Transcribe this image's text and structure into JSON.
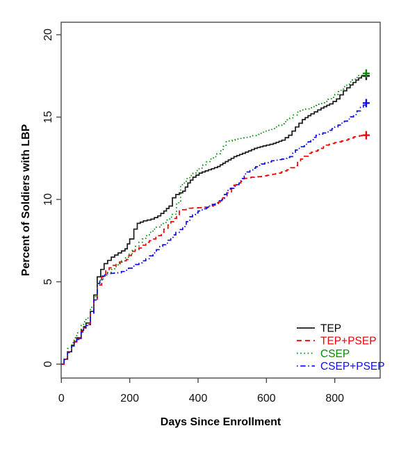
{
  "figure": {
    "xlabel": "Days Since Enrollment",
    "ylabel": "Percent of Soldiers with LBP"
  },
  "chart_data": {
    "type": "line",
    "line_style": "step-after",
    "title": "",
    "xlabel": "Days Since Enrollment",
    "ylabel": "Percent of Soldiers with LBP",
    "xlim": [
      0,
      933
    ],
    "ylim": [
      0,
      20.9
    ],
    "x_ticks": [
      "0",
      "200",
      "400",
      "600",
      "800"
    ],
    "x_tick_values": [
      0,
      200,
      400,
      600,
      800
    ],
    "y_ticks": [
      "0",
      "5",
      "10",
      "15",
      "20"
    ],
    "y_tick_values": [
      0,
      5,
      10,
      15,
      20
    ],
    "grid": false,
    "legend_position": "bottom-right",
    "box_color": "#4a4a4a",
    "tick_label_color": "#111111",
    "series": [
      {
        "name": "TEP",
        "color": "#1a1a1a",
        "dash": "solid",
        "censor_at_end": true,
        "points": [
          [
            0,
            0
          ],
          [
            8,
            0.3
          ],
          [
            18,
            0.75
          ],
          [
            30,
            1.15
          ],
          [
            45,
            1.6
          ],
          [
            58,
            2.05
          ],
          [
            72,
            2.5
          ],
          [
            85,
            3.2
          ],
          [
            95,
            4.2
          ],
          [
            105,
            5.3
          ],
          [
            115,
            5.75
          ],
          [
            125,
            6.1
          ],
          [
            146,
            6.5
          ],
          [
            166,
            6.75
          ],
          [
            186,
            7
          ],
          [
            200,
            7.6
          ],
          [
            212,
            8.2
          ],
          [
            222,
            8.55
          ],
          [
            240,
            8.7
          ],
          [
            262,
            8.8
          ],
          [
            282,
            9
          ],
          [
            300,
            9.3
          ],
          [
            315,
            9.6
          ],
          [
            325,
            10.1
          ],
          [
            335,
            10.3
          ],
          [
            355,
            10.5
          ],
          [
            370,
            11
          ],
          [
            385,
            11.35
          ],
          [
            403,
            11.6
          ],
          [
            430,
            11.8
          ],
          [
            457,
            12
          ],
          [
            480,
            12.3
          ],
          [
            505,
            12.6
          ],
          [
            530,
            12.8
          ],
          [
            565,
            13.1
          ],
          [
            590,
            13.25
          ],
          [
            620,
            13.4
          ],
          [
            645,
            13.6
          ],
          [
            665,
            13.9
          ],
          [
            685,
            14.4
          ],
          [
            705,
            14.85
          ],
          [
            730,
            15.2
          ],
          [
            760,
            15.55
          ],
          [
            785,
            15.8
          ],
          [
            805,
            16.1
          ],
          [
            825,
            16.6
          ],
          [
            845,
            16.95
          ],
          [
            862,
            17.25
          ],
          [
            878,
            17.5
          ],
          [
            892,
            17.5
          ]
        ]
      },
      {
        "name": "TEP+PSEP",
        "color": "#f00000",
        "dash": "dashed",
        "censor_at_end": true,
        "points": [
          [
            0,
            0
          ],
          [
            8,
            0.3
          ],
          [
            18,
            0.75
          ],
          [
            30,
            1.15
          ],
          [
            45,
            1.55
          ],
          [
            58,
            2
          ],
          [
            72,
            2.4
          ],
          [
            85,
            3.1
          ],
          [
            95,
            3.9
          ],
          [
            105,
            4.8
          ],
          [
            118,
            5.3
          ],
          [
            130,
            5.7
          ],
          [
            150,
            6
          ],
          [
            170,
            6.2
          ],
          [
            190,
            6.35
          ],
          [
            205,
            6.85
          ],
          [
            227,
            7.05
          ],
          [
            247,
            7.4
          ],
          [
            268,
            7.6
          ],
          [
            285,
            7.8
          ],
          [
            300,
            8.2
          ],
          [
            312,
            8.45
          ],
          [
            329,
            8.85
          ],
          [
            345,
            9.3
          ],
          [
            365,
            9.45
          ],
          [
            400,
            9.5
          ],
          [
            430,
            9.55
          ],
          [
            445,
            9.65
          ],
          [
            460,
            9.85
          ],
          [
            472,
            10.1
          ],
          [
            485,
            10.4
          ],
          [
            498,
            10.75
          ],
          [
            512,
            11
          ],
          [
            525,
            11.25
          ],
          [
            555,
            11.35
          ],
          [
            585,
            11.4
          ],
          [
            610,
            11.5
          ],
          [
            635,
            11.6
          ],
          [
            660,
            11.8
          ],
          [
            682,
            12.05
          ],
          [
            700,
            12.45
          ],
          [
            722,
            12.8
          ],
          [
            750,
            13
          ],
          [
            775,
            13.3
          ],
          [
            800,
            13.45
          ],
          [
            830,
            13.6
          ],
          [
            856,
            13.8
          ],
          [
            880,
            13.9
          ],
          [
            892,
            13.9
          ]
        ]
      },
      {
        "name": "CSEP",
        "color": "#008b00",
        "dash": "dotted",
        "censor_at_end": true,
        "points": [
          [
            0,
            0
          ],
          [
            8,
            0.35
          ],
          [
            18,
            0.95
          ],
          [
            30,
            1.3
          ],
          [
            45,
            1.9
          ],
          [
            58,
            2.35
          ],
          [
            72,
            2.8
          ],
          [
            85,
            3.45
          ],
          [
            95,
            4.1
          ],
          [
            105,
            4.95
          ],
          [
            125,
            5.4
          ],
          [
            146,
            5.75
          ],
          [
            166,
            6.1
          ],
          [
            186,
            6.45
          ],
          [
            207,
            6.9
          ],
          [
            227,
            7.4
          ],
          [
            247,
            7.8
          ],
          [
            268,
            8.2
          ],
          [
            288,
            8.45
          ],
          [
            309,
            8.75
          ],
          [
            325,
            9.1
          ],
          [
            337,
            9.8
          ],
          [
            349,
            10.9
          ],
          [
            360,
            11.1
          ],
          [
            376,
            11.45
          ],
          [
            403,
            11.9
          ],
          [
            425,
            12.3
          ],
          [
            445,
            12.6
          ],
          [
            465,
            12.95
          ],
          [
            482,
            13.5
          ],
          [
            500,
            13.6
          ],
          [
            525,
            13.7
          ],
          [
            550,
            13.8
          ],
          [
            570,
            13.95
          ],
          [
            595,
            14.15
          ],
          [
            618,
            14.3
          ],
          [
            645,
            14.6
          ],
          [
            668,
            14.95
          ],
          [
            690,
            15.3
          ],
          [
            715,
            15.5
          ],
          [
            745,
            15.7
          ],
          [
            770,
            15.95
          ],
          [
            790,
            16.2
          ],
          [
            810,
            16.55
          ],
          [
            835,
            17
          ],
          [
            860,
            17.4
          ],
          [
            880,
            17.65
          ],
          [
            892,
            17.65
          ]
        ]
      },
      {
        "name": "CSEP+PSEP",
        "color": "#0d0dee",
        "dash": "dotdash",
        "censor_at_end": true,
        "points": [
          [
            0,
            0
          ],
          [
            8,
            0.28
          ],
          [
            18,
            0.7
          ],
          [
            30,
            1.1
          ],
          [
            45,
            1.5
          ],
          [
            58,
            1.95
          ],
          [
            72,
            2.35
          ],
          [
            85,
            3.1
          ],
          [
            95,
            3.9
          ],
          [
            105,
            4.9
          ],
          [
            120,
            5.35
          ],
          [
            135,
            5.5
          ],
          [
            165,
            5.55
          ],
          [
            186,
            5.7
          ],
          [
            207,
            5.95
          ],
          [
            227,
            6.15
          ],
          [
            247,
            6.4
          ],
          [
            268,
            6.75
          ],
          [
            288,
            7.15
          ],
          [
            305,
            7.35
          ],
          [
            320,
            7.7
          ],
          [
            335,
            8
          ],
          [
            355,
            8.35
          ],
          [
            376,
            8.95
          ],
          [
            400,
            9.3
          ],
          [
            425,
            9.5
          ],
          [
            450,
            9.8
          ],
          [
            470,
            10.05
          ],
          [
            484,
            10.55
          ],
          [
            505,
            10.8
          ],
          [
            520,
            11
          ],
          [
            535,
            11.55
          ],
          [
            560,
            11.9
          ],
          [
            585,
            12.15
          ],
          [
            615,
            12.35
          ],
          [
            645,
            12.45
          ],
          [
            668,
            12.6
          ],
          [
            685,
            13
          ],
          [
            700,
            13.2
          ],
          [
            722,
            13.5
          ],
          [
            745,
            13.9
          ],
          [
            775,
            14.1
          ],
          [
            800,
            14.4
          ],
          [
            828,
            14.75
          ],
          [
            855,
            15.15
          ],
          [
            875,
            15.6
          ],
          [
            892,
            15.85
          ]
        ]
      }
    ],
    "legend": [
      {
        "label": "TEP"
      },
      {
        "label": "TEP+PSEP"
      },
      {
        "label": "CSEP"
      },
      {
        "label": "CSEP+PSEP"
      }
    ]
  }
}
